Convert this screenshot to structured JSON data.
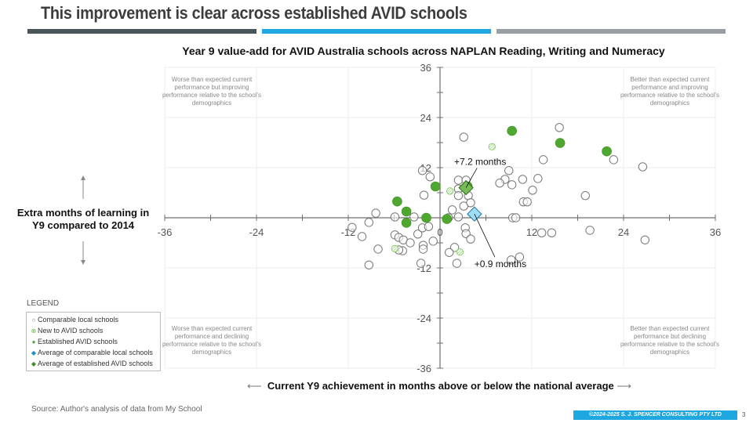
{
  "slide": {
    "title": "This improvement is clear across established AVID schools",
    "bars": [
      "#48565c",
      "#1ea7e0",
      "#999ea4"
    ],
    "source": "Source: Author's analysis of data from My School",
    "copyright": "©2024-2025 S. J. SPENCER CONSULTING PTY LTD",
    "page_number": "3"
  },
  "quadrants": {
    "top_left": "Worse than expected current performance but improving performance relative to the school's demographics",
    "top_right": "Better than expected current performance and improving performance relative to the school's demographics",
    "bottom_left": "Worse than expected current performance and declining performance relative to the school's demographics",
    "bottom_right": "Better than expected current performance but declining performance relative to the school's demographics"
  },
  "legend": {
    "title": "LEGEND",
    "items": [
      {
        "label": "Comparable local schools",
        "icon": "hollow-circle-icon"
      },
      {
        "label": "New to AVID schools",
        "icon": "hatched-circle-icon"
      },
      {
        "label": "Established AVID schools",
        "icon": "filled-circle-icon"
      },
      {
        "label": "Average of comparable local schools",
        "icon": "blue-diamond-icon"
      },
      {
        "label": "Average of established AVID schools",
        "icon": "green-diamond-icon"
      }
    ]
  },
  "colors": {
    "established": "#4ea72e",
    "new_avid": "#8ccf6e",
    "comparable": "#777777",
    "avg_comparable": "#9fdcf5",
    "avg_established": "#76bb57"
  },
  "chart_data": {
    "type": "scatter",
    "title": "Year 9 value-add for AVID Australia schools across NAPLAN Reading, Writing and Numeracy",
    "xlabel": "Current Y9 achievement in months above or below the national average",
    "ylabel": "Extra months of learning in Y9 compared to 2014",
    "xlim": [
      -36,
      36
    ],
    "ylim": [
      -36,
      36
    ],
    "xticks": [
      "-36",
      "-24",
      "-12",
      "0",
      "12",
      "24",
      "36"
    ],
    "yticks": [
      "36",
      "24",
      "12",
      "0",
      "-12",
      "-24",
      "-36"
    ],
    "grid": true,
    "legend_position": "bottom-left",
    "series": [
      {
        "name": "Comparable local schools",
        "points": [
          [
            3.1,
            19.3
          ],
          [
            9,
            11.3
          ],
          [
            8.5,
            9.2
          ],
          [
            7.8,
            8.3
          ],
          [
            9.4,
            7.9
          ],
          [
            10.8,
            9.2
          ],
          [
            12.1,
            6.6
          ],
          [
            12.8,
            9.4
          ],
          [
            13.5,
            13.9
          ],
          [
            15.6,
            21.6
          ],
          [
            22.7,
            13.9
          ],
          [
            26.5,
            12.2
          ],
          [
            19,
            5.3
          ],
          [
            10.9,
            3.8
          ],
          [
            11.4,
            3.8
          ],
          [
            9.5,
            0
          ],
          [
            9.9,
            0
          ],
          [
            13.3,
            -3.6
          ],
          [
            14.6,
            -3.6
          ],
          [
            19.6,
            -3
          ],
          [
            26.8,
            -5.3
          ],
          [
            2.4,
            9
          ],
          [
            3.4,
            9
          ],
          [
            2.4,
            6.9
          ],
          [
            2.4,
            5.3
          ],
          [
            3.7,
            5.3
          ],
          [
            3.1,
            2.8
          ],
          [
            4,
            3.6
          ],
          [
            1.6,
            1.9
          ],
          [
            2.4,
            0.2
          ],
          [
            1.1,
            0
          ],
          [
            3.3,
            -2.4
          ],
          [
            3.4,
            -3.8
          ],
          [
            4,
            -5.1
          ],
          [
            1.9,
            -7.1
          ],
          [
            1.2,
            -8.3
          ],
          [
            2.2,
            -10.9
          ],
          [
            9.3,
            -10.1
          ],
          [
            10.4,
            -9.4
          ],
          [
            -2.1,
            5.4
          ],
          [
            -1.3,
            9.8
          ],
          [
            -2.3,
            11.3
          ],
          [
            -8.4,
            1.1
          ],
          [
            -9.3,
            -1.1
          ],
          [
            -11.5,
            -2.3
          ],
          [
            -10.2,
            -4.5
          ],
          [
            -8.1,
            -7.5
          ],
          [
            -9.3,
            -11.3
          ],
          [
            -5.9,
            -4.1
          ],
          [
            -5.4,
            -4.7
          ],
          [
            -4.8,
            -5.3
          ],
          [
            -4.9,
            -7.9
          ],
          [
            -3.9,
            -6
          ],
          [
            -2.9,
            -3.9
          ],
          [
            -2.3,
            -2.4
          ],
          [
            -1.5,
            -2.1
          ],
          [
            -2.2,
            -6.6
          ],
          [
            -2.2,
            -7.5
          ],
          [
            -0.9,
            -5.6
          ],
          [
            -2.5,
            -10.9
          ],
          [
            -3.4,
            0.2
          ],
          [
            -5.9,
            0.2
          ],
          [
            -5.4,
            -7.7
          ]
        ]
      },
      {
        "name": "New to AVID schools",
        "points": [
          [
            6.8,
            17
          ],
          [
            1.3,
            6.4
          ],
          [
            -5.9,
            -7.4
          ],
          [
            2.6,
            -8.2
          ]
        ]
      },
      {
        "name": "Established AVID schools",
        "points": [
          [
            9.4,
            20.8
          ],
          [
            15.7,
            17.9
          ],
          [
            21.8,
            15.9
          ],
          [
            -0.6,
            7.5
          ],
          [
            -5.6,
            3.9
          ],
          [
            -4.4,
            1.5
          ],
          [
            -4.4,
            -1.2
          ],
          [
            -1.8,
            0
          ],
          [
            0.9,
            -0.3
          ],
          [
            3.6,
            7.5
          ]
        ]
      },
      {
        "name": "Average of comparable local schools",
        "points": [
          [
            4.5,
            0.9
          ]
        ],
        "annotation": "+0.9 months"
      },
      {
        "name": "Average of established AVID schools",
        "points": [
          [
            3.4,
            7.2
          ]
        ],
        "annotation": "+7.2 months"
      }
    ]
  }
}
